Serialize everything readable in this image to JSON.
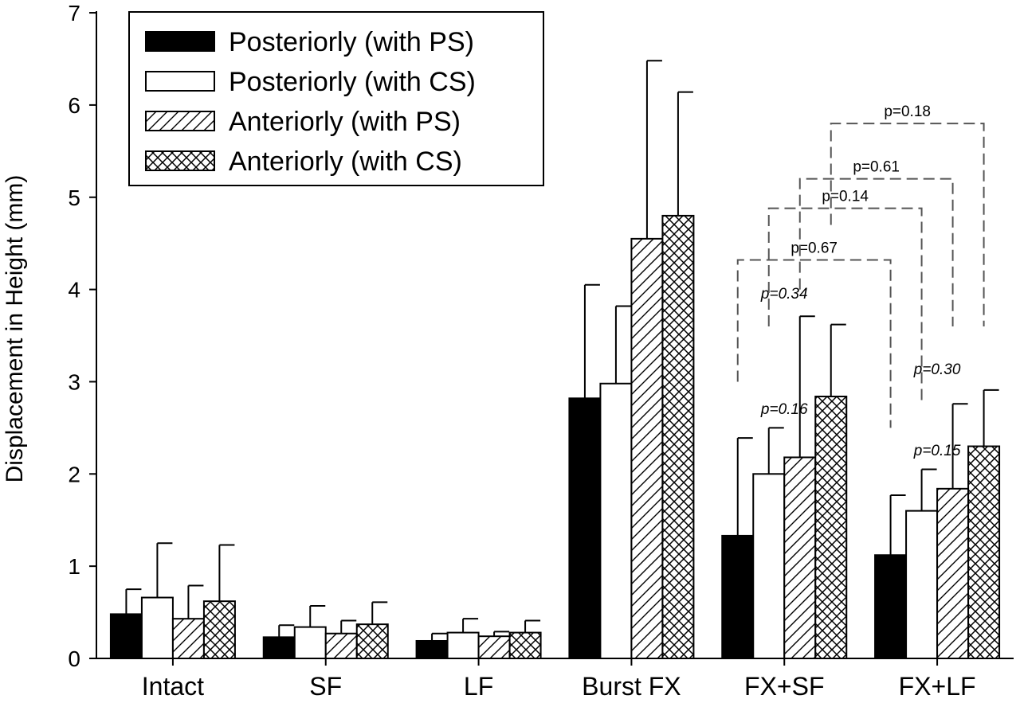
{
  "chart_data": {
    "type": "bar",
    "title": "",
    "xlabel": "",
    "ylabel": "Displacement in Height (mm)",
    "ylim": [
      0,
      7
    ],
    "yticks": [
      0,
      1,
      2,
      3,
      4,
      5,
      6,
      7
    ],
    "grid": false,
    "legend_position": "top-left",
    "categories": [
      "Intact",
      "SF",
      "LF",
      "Burst FX",
      "FX+SF",
      "FX+LF"
    ],
    "series": [
      {
        "name": "Posteriorly (with PS)",
        "pattern": "solid",
        "color": "#000000",
        "values": [
          0.48,
          0.23,
          0.19,
          2.82,
          1.33,
          1.12
        ],
        "errors": [
          0.27,
          0.13,
          0.08,
          1.23,
          1.06,
          0.65
        ]
      },
      {
        "name": "Posteriorly (with CS)",
        "pattern": "open",
        "color": "#ffffff",
        "values": [
          0.66,
          0.34,
          0.28,
          2.98,
          2.0,
          1.6
        ],
        "errors": [
          0.59,
          0.23,
          0.15,
          0.84,
          0.5,
          0.45
        ]
      },
      {
        "name": "Anteriorly (with PS)",
        "pattern": "hatch",
        "color": "#ffffff",
        "values": [
          0.43,
          0.27,
          0.24,
          4.55,
          2.18,
          1.84
        ],
        "errors": [
          0.36,
          0.14,
          0.05,
          1.93,
          1.53,
          0.92
        ]
      },
      {
        "name": "Anteriorly (with CS)",
        "pattern": "crosshatch",
        "color": "#ffffff",
        "values": [
          0.62,
          0.37,
          0.28,
          4.8,
          2.84,
          2.3
        ],
        "errors": [
          0.61,
          0.24,
          0.13,
          1.34,
          0.78,
          0.61
        ]
      }
    ],
    "annotations": {
      "within_group": [
        {
          "text": "p=0.16",
          "group": "FX+SF",
          "y": 2.65
        },
        {
          "text": "p=0.34",
          "group": "FX+SF",
          "y": 3.9
        },
        {
          "text": "p=0.15",
          "group": "FX+LF",
          "y": 2.2
        },
        {
          "text": "p=0.30",
          "group": "FX+LF",
          "y": 3.08
        }
      ],
      "between_group": [
        {
          "text": "p=0.67",
          "from_group": "FX+SF",
          "to_group": "FX+LF",
          "series": 0,
          "y_level": 4.32,
          "y_start": 3.0,
          "y_end": 2.5
        },
        {
          "text": "p=0.14",
          "from_group": "FX+SF",
          "to_group": "FX+LF",
          "series": 1,
          "y_level": 4.88,
          "y_start": 3.6,
          "y_end": 2.8
        },
        {
          "text": "p=0.61",
          "from_group": "FX+SF",
          "to_group": "FX+LF",
          "series": 2,
          "y_level": 5.2,
          "y_start": 4.0,
          "y_end": 3.6
        },
        {
          "text": "p=0.18",
          "from_group": "FX+SF",
          "to_group": "FX+LF",
          "series": 3,
          "y_level": 5.8,
          "y_start": 4.7,
          "y_end": 3.6
        }
      ]
    }
  }
}
